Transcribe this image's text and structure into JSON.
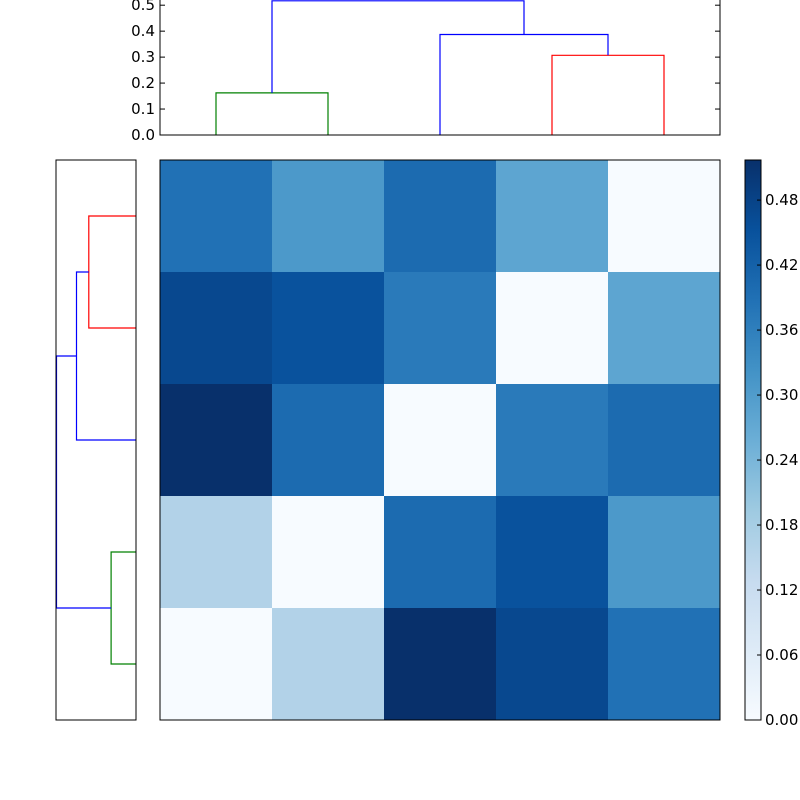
{
  "chart_data": [
    {
      "type": "dendrogram",
      "orientation": "top",
      "ylim": [
        0,
        0.52
      ],
      "yticks": [
        "0.0",
        "0.1",
        "0.2",
        "0.3",
        "0.4",
        "0.5"
      ],
      "yvalues": [
        0,
        0.1,
        0.2,
        0.3,
        0.4,
        0.5
      ],
      "links": [
        {
          "x": [
            0.5,
            0.5,
            1.5,
            1.5
          ],
          "y": [
            0,
            0.162,
            0.162,
            0
          ],
          "color": "#008000"
        },
        {
          "x": [
            3.5,
            3.5,
            4.5,
            4.5
          ],
          "y": [
            0,
            0.307,
            0.307,
            0
          ],
          "color": "#ff0000"
        },
        {
          "x": [
            2.5,
            2.5,
            4.0,
            4.0
          ],
          "y": [
            0,
            0.387,
            0.387,
            0.307
          ],
          "color": "#0000ff"
        },
        {
          "x": [
            1.0,
            1.0,
            3.25,
            3.25
          ],
          "y": [
            0.162,
            0.517,
            0.517,
            0.387
          ],
          "color": "#0000ff"
        }
      ]
    },
    {
      "type": "dendrogram",
      "orientation": "left",
      "xlim": [
        0,
        0.52
      ],
      "links": [
        {
          "y": [
            0.5,
            0.5,
            1.5,
            1.5
          ],
          "x": [
            0,
            0.162,
            0.162,
            0
          ],
          "color": "#008000"
        },
        {
          "y": [
            3.5,
            3.5,
            4.5,
            4.5
          ],
          "x": [
            0,
            0.307,
            0.307,
            0
          ],
          "color": "#ff0000"
        },
        {
          "y": [
            2.5,
            2.5,
            4.0,
            4.0
          ],
          "x": [
            0,
            0.387,
            0.387,
            0.307
          ],
          "color": "#0000ff"
        },
        {
          "y": [
            1.0,
            1.0,
            3.25,
            3.25
          ],
          "x": [
            0.162,
            0.517,
            0.517,
            0.387
          ],
          "color": "#0000ff"
        }
      ]
    },
    {
      "type": "heatmap",
      "colormap": "Blues",
      "vmin": 0,
      "vmax": 0.517,
      "rows_top_to_bottom": [
        [
          0.387,
          0.307,
          0.4,
          0.28,
          0.0
        ],
        [
          0.47,
          0.45,
          0.37,
          0.0,
          0.28
        ],
        [
          0.517,
          0.4,
          0.0,
          0.37,
          0.4
        ],
        [
          0.162,
          0.0,
          0.4,
          0.45,
          0.307
        ],
        [
          0.0,
          0.162,
          0.517,
          0.47,
          0.387
        ]
      ],
      "colorbar": {
        "ticks": [
          "0.00",
          "0.06",
          "0.12",
          "0.18",
          "0.24",
          "0.30",
          "0.36",
          "0.42",
          "0.48"
        ],
        "tick_values": [
          0,
          0.06,
          0.12,
          0.18,
          0.24,
          0.3,
          0.36,
          0.42,
          0.48
        ]
      }
    }
  ]
}
